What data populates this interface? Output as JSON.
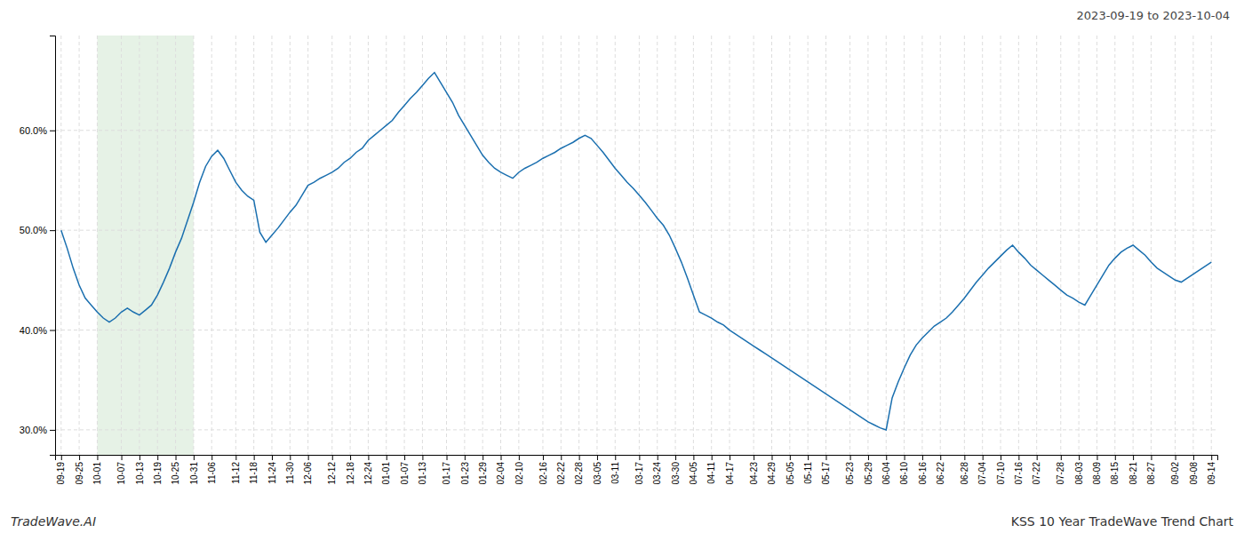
{
  "chart_data": {
    "type": "line",
    "title": "KSS 10 Year TradeWave Trend Chart",
    "subtitle": "2023-09-19 to 2023-10-04",
    "annotations": [
      "TradeWave.AI"
    ],
    "color": "#1a6faf",
    "grid": true,
    "highlight": {
      "from": "10-01",
      "to": "10-31",
      "color": "#d6ead6"
    },
    "ylim": [
      0.275,
      0.695
    ],
    "yticks": [
      {
        "value": 0.3,
        "label": "30.0%"
      },
      {
        "value": 0.4,
        "label": "40.0%"
      },
      {
        "value": 0.5,
        "label": "50.0%"
      },
      {
        "value": 0.6,
        "label": "60.0%"
      }
    ],
    "categories": [
      "09-19",
      null,
      null,
      "09-25",
      null,
      null,
      "10-01",
      null,
      null,
      null,
      "10-07",
      null,
      null,
      "10-13",
      null,
      null,
      "10-19",
      null,
      null,
      "10-25",
      null,
      null,
      "10-31",
      null,
      null,
      "11-06",
      null,
      null,
      null,
      "11-12",
      null,
      null,
      "11-18",
      null,
      null,
      "11-24",
      null,
      null,
      "11-30",
      null,
      null,
      "12-06",
      null,
      null,
      null,
      "12-12",
      null,
      null,
      "12-18",
      null,
      null,
      "12-24",
      null,
      null,
      "01-01",
      null,
      null,
      "01-07",
      null,
      null,
      "01-13",
      null,
      null,
      null,
      "01-17",
      null,
      null,
      "01-23",
      null,
      null,
      "01-29",
      null,
      null,
      "02-04",
      null,
      null,
      "02-10",
      null,
      null,
      null,
      "02-16",
      null,
      null,
      "02-22",
      null,
      null,
      "02-28",
      null,
      null,
      "03-05",
      null,
      null,
      "03-11",
      null,
      null,
      null,
      "03-17",
      null,
      null,
      "03-24",
      null,
      null,
      "03-30",
      null,
      null,
      "04-05",
      null,
      null,
      "04-11",
      null,
      null,
      "04-17",
      null,
      null,
      null,
      "04-23",
      null,
      null,
      "04-29",
      null,
      null,
      "05-05",
      null,
      null,
      "05-11",
      null,
      null,
      "05-17",
      null,
      null,
      null,
      "05-23",
      null,
      null,
      "05-29",
      null,
      null,
      "06-04",
      null,
      null,
      "06-10",
      null,
      null,
      "06-16",
      null,
      null,
      "06-22",
      null,
      null,
      null,
      "06-28",
      null,
      null,
      "07-04",
      null,
      null,
      "07-10",
      null,
      null,
      "07-16",
      null,
      null,
      "07-22",
      null,
      null,
      null,
      "07-28",
      null,
      null,
      "08-03",
      null,
      null,
      "08-09",
      null,
      null,
      "08-15",
      null,
      null,
      "08-21",
      null,
      null,
      "08-27",
      null,
      null,
      null,
      "09-02",
      null,
      null,
      "09-08",
      null,
      null,
      "09-14"
    ],
    "values": [
      0.5,
      0.482,
      0.462,
      0.445,
      0.432,
      0.425,
      0.418,
      0.412,
      0.408,
      0.412,
      0.418,
      0.422,
      0.418,
      0.415,
      0.42,
      0.425,
      0.435,
      0.448,
      0.462,
      0.478,
      0.492,
      0.51,
      0.528,
      0.548,
      0.564,
      0.574,
      0.58,
      0.572,
      0.56,
      0.548,
      0.54,
      0.534,
      0.53,
      0.498,
      0.488,
      0.495,
      0.502,
      0.51,
      0.518,
      0.525,
      0.535,
      0.545,
      0.548,
      0.552,
      0.555,
      0.558,
      0.562,
      0.568,
      0.572,
      0.578,
      0.582,
      0.59,
      0.595,
      0.6,
      0.605,
      0.61,
      0.618,
      0.625,
      0.632,
      0.638,
      0.645,
      0.652,
      0.658,
      0.648,
      0.638,
      0.628,
      0.615,
      0.605,
      0.595,
      0.585,
      0.575,
      0.568,
      0.562,
      0.558,
      0.555,
      0.552,
      0.558,
      0.562,
      0.565,
      0.568,
      0.572,
      0.575,
      0.578,
      0.582,
      0.585,
      0.588,
      0.592,
      0.595,
      0.592,
      0.585,
      0.578,
      0.57,
      0.562,
      0.555,
      0.548,
      0.542,
      0.535,
      0.528,
      0.52,
      0.512,
      0.505,
      0.495,
      0.482,
      0.468,
      0.452,
      0.435,
      0.418,
      0.415,
      0.412,
      0.408,
      0.405,
      0.4,
      0.396,
      0.392,
      0.388,
      0.384,
      0.38,
      0.376,
      0.372,
      0.368,
      0.364,
      0.36,
      0.356,
      0.352,
      0.348,
      0.344,
      0.34,
      0.336,
      0.332,
      0.328,
      0.324,
      0.32,
      0.316,
      0.312,
      0.308,
      0.305,
      0.302,
      0.3,
      0.332,
      0.348,
      0.362,
      0.375,
      0.385,
      0.392,
      0.398,
      0.404,
      0.408,
      0.412,
      0.418,
      0.425,
      0.432,
      0.44,
      0.448,
      0.455,
      0.462,
      0.468,
      0.474,
      0.48,
      0.485,
      0.478,
      0.472,
      0.465,
      0.46,
      0.455,
      0.45,
      0.445,
      0.44,
      0.435,
      0.432,
      0.428,
      0.425,
      0.435,
      0.445,
      0.455,
      0.465,
      0.472,
      0.478,
      0.482,
      0.485,
      0.48,
      0.475,
      0.468,
      0.462,
      0.458,
      0.454,
      0.45,
      0.448,
      0.452,
      0.456,
      0.46,
      0.464,
      0.468
    ]
  }
}
